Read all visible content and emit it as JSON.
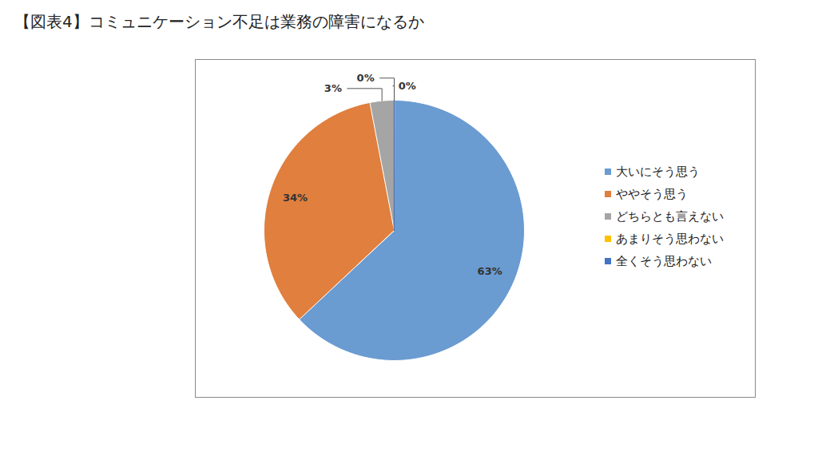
{
  "chart_data": {
    "type": "pie",
    "title": "【図表4】コミュニケーション不足は業務の障害になるか",
    "categories": [
      "大いにそう思う",
      "ややそう思う",
      "どちらとも言えない",
      "あまりそう思わない",
      "全くそう思わない"
    ],
    "values": [
      63,
      34,
      3,
      0,
      0
    ],
    "value_labels": [
      "63%",
      "34%",
      "3%",
      "0%",
      "0%"
    ],
    "colors": [
      "#6a9bd1",
      "#e07f3e",
      "#a5a5a5",
      "#ffc000",
      "#4472c4"
    ],
    "data_labels": true,
    "legend": "right"
  }
}
